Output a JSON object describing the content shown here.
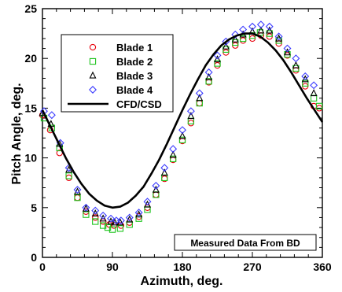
{
  "chart_data": {
    "type": "scatter",
    "xlabel": "Azimuth, deg.",
    "ylabel": "Pitch Angle, deg.",
    "xlim": [
      0,
      360
    ],
    "ylim": [
      0,
      25
    ],
    "xticks": [
      0,
      90,
      180,
      270,
      360
    ],
    "yticks": [
      0,
      5,
      10,
      15,
      20,
      25
    ],
    "grid": false,
    "legend_position": "top-left",
    "annotation": "Measured Data From BD",
    "series": [
      {
        "name": "Blade 1",
        "marker": "circle",
        "color": "#e8000b",
        "x": [
          0,
          10,
          22,
          34,
          45,
          56,
          68,
          78,
          86,
          92,
          101,
          112,
          124,
          135,
          146,
          157,
          168,
          180,
          191,
          202,
          214,
          225,
          236,
          248,
          258,
          270,
          281,
          292,
          304,
          315,
          326,
          338,
          349,
          356
        ],
        "y": [
          14.3,
          12.8,
          10.5,
          8.0,
          6.0,
          4.6,
          4.0,
          3.6,
          3.3,
          3.2,
          3.2,
          3.5,
          4.1,
          5.0,
          6.3,
          7.9,
          9.8,
          11.7,
          13.5,
          15.5,
          17.6,
          19.3,
          20.6,
          21.3,
          21.8,
          22.0,
          22.3,
          22.2,
          21.5,
          20.3,
          18.8,
          17.2,
          15.2,
          15.0
        ]
      },
      {
        "name": "Blade 2",
        "marker": "square",
        "color": "#1ec41e",
        "x": [
          2,
          12,
          22,
          34,
          45,
          56,
          68,
          78,
          84,
          90,
          100,
          112,
          124,
          135,
          146,
          157,
          168,
          180,
          191,
          202,
          214,
          225,
          236,
          248,
          258,
          270,
          280,
          292,
          304,
          315,
          326,
          338,
          349,
          356
        ],
        "y": [
          14.0,
          13.0,
          11.0,
          8.2,
          6.0,
          4.3,
          3.6,
          3.2,
          3.0,
          2.8,
          2.9,
          3.3,
          3.9,
          4.8,
          6.3,
          8.0,
          9.9,
          11.8,
          13.7,
          15.5,
          17.7,
          19.5,
          20.9,
          21.6,
          22.0,
          22.3,
          22.6,
          22.5,
          21.8,
          20.4,
          19.0,
          17.5,
          16.0,
          15.2
        ]
      },
      {
        "name": "Blade 3",
        "marker": "triangle",
        "color": "#000000",
        "x": [
          0,
          11,
          22,
          34,
          45,
          56,
          68,
          78,
          88,
          93,
          100,
          112,
          124,
          135,
          146,
          157,
          168,
          180,
          191,
          202,
          214,
          225,
          236,
          248,
          258,
          270,
          281,
          292,
          304,
          315,
          326,
          338,
          349
        ],
        "y": [
          14.5,
          13.4,
          11.4,
          8.8,
          6.6,
          4.9,
          4.4,
          3.9,
          3.6,
          3.5,
          3.5,
          3.8,
          4.3,
          5.3,
          6.8,
          8.5,
          10.3,
          12.2,
          14.2,
          16.0,
          18.1,
          19.9,
          21.2,
          21.9,
          22.4,
          22.7,
          22.8,
          22.8,
          22.0,
          20.6,
          19.3,
          17.9,
          16.5
        ]
      },
      {
        "name": "Blade 4",
        "marker": "diamond",
        "color": "#3c3cff",
        "x": [
          2,
          12,
          23,
          34,
          45,
          56,
          68,
          78,
          88,
          95,
          101,
          112,
          124,
          135,
          146,
          157,
          168,
          180,
          191,
          202,
          214,
          225,
          236,
          248,
          258,
          270,
          281,
          292,
          304,
          315,
          326,
          338,
          349
        ],
        "y": [
          14.7,
          14.3,
          11.5,
          9.0,
          6.8,
          5.0,
          4.7,
          4.2,
          3.9,
          3.7,
          3.7,
          4.0,
          4.5,
          5.6,
          7.2,
          9.0,
          10.9,
          12.8,
          14.7,
          16.5,
          18.6,
          20.3,
          21.7,
          22.4,
          22.9,
          23.2,
          23.4,
          23.2,
          22.2,
          21.0,
          20.0,
          18.2,
          17.3
        ]
      },
      {
        "name": "CFD/CSD",
        "marker": "line",
        "color": "#000000",
        "x": [
          0,
          10,
          20,
          30,
          40,
          50,
          60,
          70,
          80,
          90,
          100,
          110,
          120,
          130,
          140,
          150,
          160,
          170,
          180,
          190,
          200,
          210,
          220,
          230,
          240,
          250,
          260,
          270,
          280,
          290,
          300,
          310,
          320,
          330,
          340,
          350,
          360
        ],
        "y": [
          14.8,
          13.2,
          11.6,
          10.0,
          8.6,
          7.4,
          6.4,
          5.7,
          5.2,
          5.0,
          5.1,
          5.5,
          6.2,
          7.1,
          8.4,
          9.8,
          11.4,
          13.1,
          14.8,
          16.4,
          17.9,
          19.3,
          20.4,
          21.3,
          21.9,
          22.3,
          22.5,
          22.5,
          22.2,
          21.6,
          20.8,
          19.8,
          18.6,
          17.3,
          16.0,
          14.8,
          13.6
        ]
      }
    ]
  }
}
